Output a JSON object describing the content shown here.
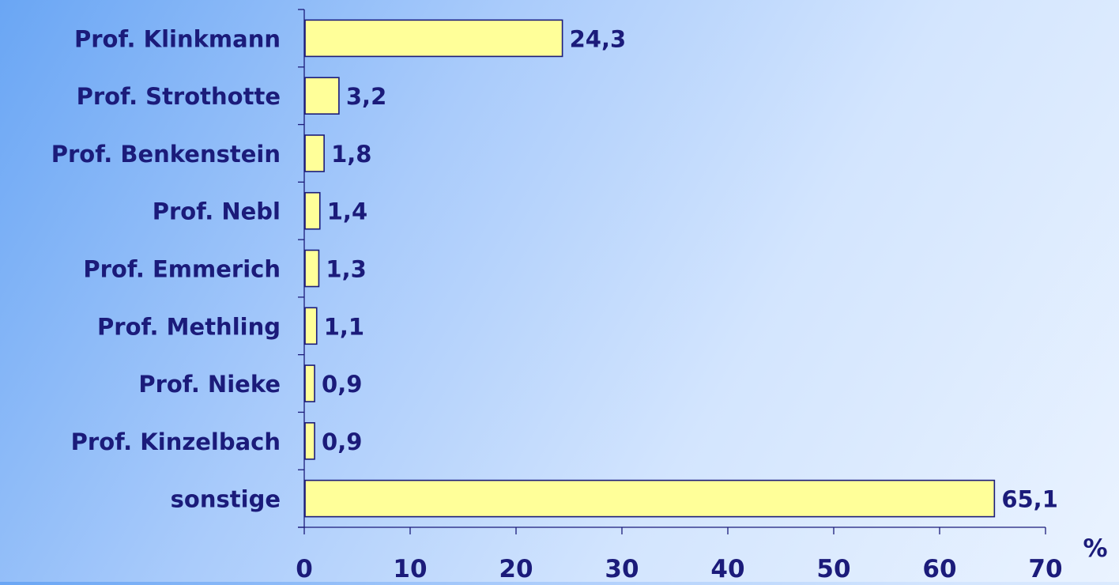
{
  "chart_data": {
    "type": "bar",
    "orientation": "horizontal",
    "categories": [
      "Prof. Klinkmann",
      "Prof. Strothotte",
      "Prof. Benkenstein",
      "Prof. Nebl",
      "Prof. Emmerich",
      "Prof. Methling",
      "Prof. Nieke",
      "Prof. Kinzelbach",
      "sonstige"
    ],
    "values": [
      24.3,
      3.2,
      1.8,
      1.4,
      1.3,
      1.1,
      0.9,
      0.9,
      65.1
    ],
    "value_labels": [
      "24,3",
      "3,2",
      "1,8",
      "1,4",
      "1,3",
      "1,1",
      "0,9",
      "0,9",
      "65,1"
    ],
    "xlim": [
      0,
      70
    ],
    "xticks": [
      0,
      10,
      20,
      30,
      40,
      50,
      60,
      70
    ],
    "xtick_labels": [
      "0",
      "10",
      "20",
      "30",
      "40",
      "50",
      "60",
      "70"
    ],
    "xlabel": "%",
    "ylabel": "",
    "title": "",
    "grid": false,
    "legend": "none",
    "colors": {
      "bar_fill": "#ffff99",
      "bar_stroke": "#1b1b7a",
      "text": "#1b1b7a",
      "axis": "#1b1b7a"
    }
  }
}
